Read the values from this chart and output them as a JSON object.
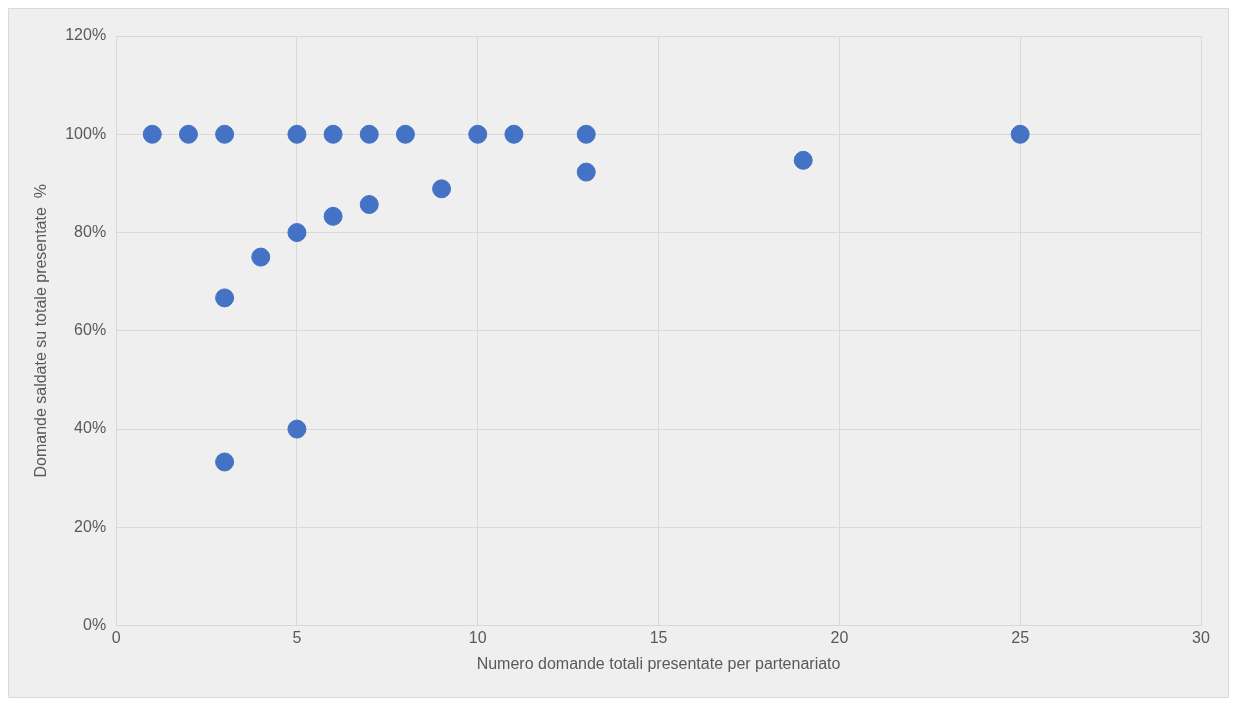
{
  "chart_data": {
    "type": "scatter",
    "xlabel": "Numero domande totali presentate per partenariato",
    "ylabel": "Domande saldate su totale presentate  %",
    "x": [
      1,
      2,
      3,
      5,
      6,
      7,
      8,
      10,
      11,
      13,
      25,
      13,
      19,
      9,
      7,
      6,
      5,
      4,
      3,
      3,
      5
    ],
    "values": [
      100,
      100,
      100,
      100,
      100,
      100,
      100,
      100,
      100,
      100,
      100,
      92.3,
      94.7,
      88.9,
      85.7,
      83.3,
      80,
      75,
      66.7,
      33.3,
      40
    ],
    "color": "#4472c4",
    "xlim": [
      0,
      30
    ],
    "xticks": [
      0,
      5,
      10,
      15,
      20,
      25,
      30
    ],
    "ylim": [
      0,
      120
    ],
    "yticks": [
      {
        "value": 0,
        "label": "0%"
      },
      {
        "value": 20,
        "label": "20%"
      },
      {
        "value": 40,
        "label": "40%"
      },
      {
        "value": 60,
        "label": "60%"
      },
      {
        "value": 80,
        "label": "80%"
      },
      {
        "value": 100,
        "label": "100%"
      },
      {
        "value": 120,
        "label": "120%"
      }
    ],
    "grid": true,
    "legend": false,
    "marker": "circle"
  }
}
